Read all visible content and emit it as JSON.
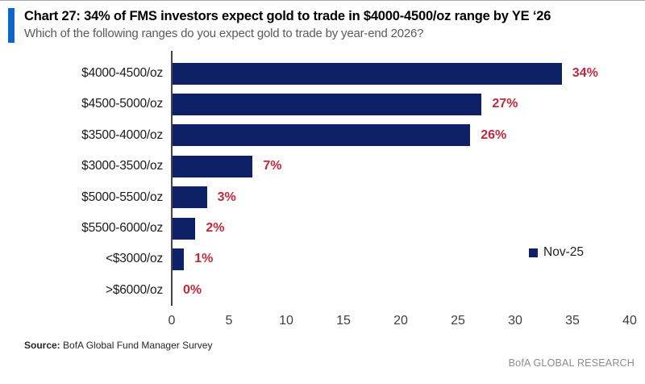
{
  "header": {
    "title": "Chart 27: 34% of FMS investors expect gold to trade in $4000-4500/oz range by YE ‘26",
    "subtitle": "Which of the following ranges do you expect gold to trade by year-end 2026?"
  },
  "chart_data": {
    "type": "bar",
    "orientation": "horizontal",
    "title": "Chart 27: 34% of FMS investors expect gold to trade in $4000-4500/oz range by YE ‘26",
    "subtitle": "Which of the following ranges do you expect gold to trade by year-end 2026?",
    "categories": [
      "$4000-4500/oz",
      "$4500-5000/oz",
      "$3500-4000/oz",
      "$3000-3500/oz",
      "$5000-5500/oz",
      "$5500-6000/oz",
      "<$3000/oz",
      ">$6000/oz"
    ],
    "values": [
      34,
      27,
      26,
      7,
      3,
      2,
      1,
      0
    ],
    "value_labels": [
      "34%",
      "27%",
      "26%",
      "7%",
      "3%",
      "2%",
      "1%",
      "0%"
    ],
    "legend": [
      "Nov-25"
    ],
    "legend_position": "right-middle",
    "xlim": [
      0,
      40
    ],
    "x_ticks": [
      0,
      5,
      10,
      15,
      20,
      25,
      30,
      35,
      40
    ],
    "grid": false,
    "xlabel": "",
    "ylabel": ""
  },
  "source": {
    "prefix": "Source:",
    "text": " BofA Global Fund Manager Survey"
  },
  "footer": {
    "brand": "BofA GLOBAL RESEARCH"
  },
  "colors": {
    "accent_bar": "#1164c8",
    "bar": "#0e2167",
    "value_label": "#c0293d",
    "brand_gray": "#8c8c8c"
  }
}
